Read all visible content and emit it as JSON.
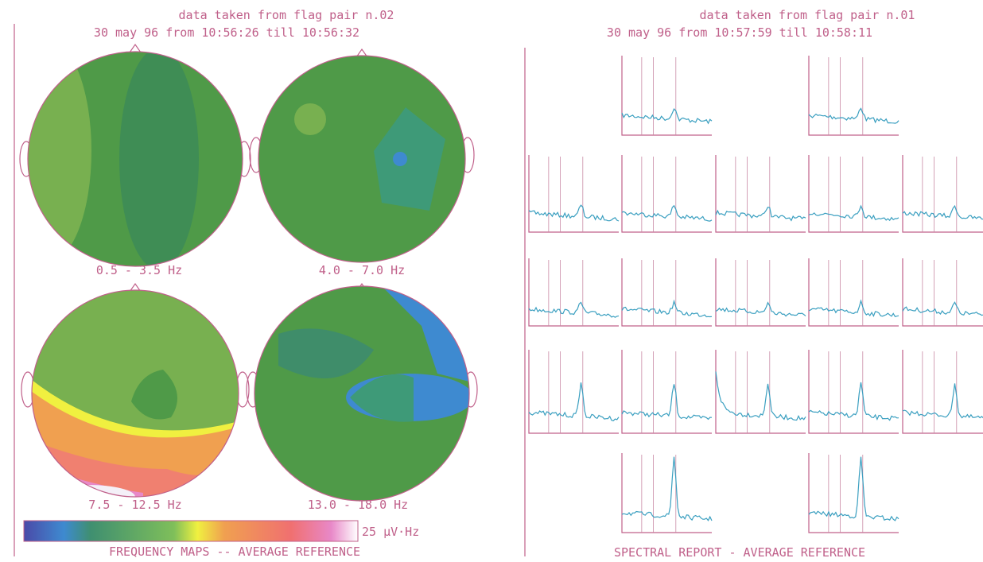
{
  "left_panel": {
    "header": {
      "line1": "data taken from flag pair n.02",
      "line2": "30 may 96  from 10:56:26  till 10:56:32"
    },
    "maps": [
      {
        "label": "0.5 -  3.5 Hz"
      },
      {
        "label": "4.0 -  7.0 Hz"
      },
      {
        "label": "7.5 - 12.5 Hz"
      },
      {
        "label": "13.0 - 18.0 Hz"
      }
    ],
    "scale_label": "25 µV·Hz",
    "footer": "FREQUENCY MAPS -- AVERAGE REFERENCE"
  },
  "right_panel": {
    "header": {
      "line1": "data taken from flag pair n.01",
      "line2": "30 may 96  from 10:57:59  till 10:58:11"
    },
    "footer": "SPECTRAL REPORT - AVERAGE REFERENCE"
  }
}
